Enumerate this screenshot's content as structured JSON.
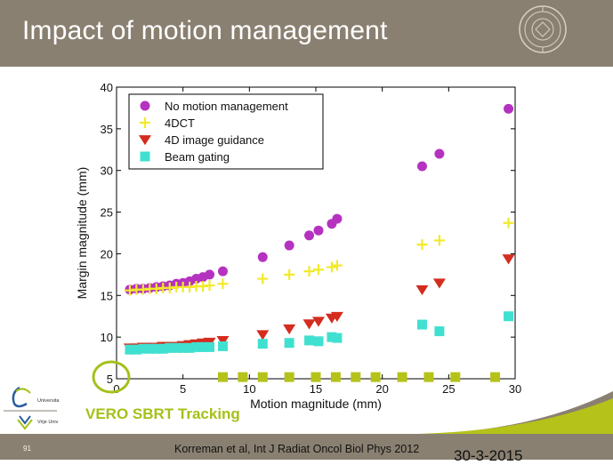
{
  "slide": {
    "title": "Impact of motion management",
    "highlight_label": "VERO SBRT Tracking",
    "page_number": "91",
    "citation": "Korreman et al, Int J Radiat Oncol Biol Phys 2012",
    "date": "30-3-2015",
    "logo_text_1": "Universita",
    "logo_text_2": "Vrije Univ",
    "colors": {
      "header": "#8a8071",
      "accent_green": "#a6c019",
      "callout_green": "#b5c21a"
    }
  },
  "chart_data": {
    "type": "scatter",
    "xlabel": "Motion magnitude (mm)",
    "ylabel": "Margin magnitude (mm)",
    "xlim": [
      0,
      30
    ],
    "ylim": [
      5,
      40
    ],
    "xticks": [
      "0",
      "5",
      "10",
      "15",
      "20",
      "25",
      "30"
    ],
    "yticks": [
      "5",
      "10",
      "15",
      "20",
      "25",
      "30",
      "35",
      "40"
    ],
    "legend_position": "top-left",
    "grid": false,
    "series": [
      {
        "name": "No motion management",
        "marker": "circle",
        "color": "#b532c0",
        "points": [
          [
            1.0,
            15.7
          ],
          [
            1.5,
            15.8
          ],
          [
            2.0,
            15.8
          ],
          [
            2.5,
            15.9
          ],
          [
            3.0,
            16.0
          ],
          [
            3.5,
            16.1
          ],
          [
            4.0,
            16.2
          ],
          [
            4.5,
            16.4
          ],
          [
            5.0,
            16.5
          ],
          [
            5.5,
            16.7
          ],
          [
            6.0,
            17.0
          ],
          [
            6.5,
            17.2
          ],
          [
            7.0,
            17.5
          ],
          [
            8.0,
            17.9
          ],
          [
            11.0,
            19.6
          ],
          [
            13.0,
            21.0
          ],
          [
            14.5,
            22.2
          ],
          [
            15.2,
            22.8
          ],
          [
            16.2,
            23.6
          ],
          [
            16.6,
            24.2
          ],
          [
            23.0,
            30.5
          ],
          [
            24.3,
            32.0
          ],
          [
            29.5,
            37.4
          ]
        ]
      },
      {
        "name": "4DCT",
        "marker": "plus",
        "color": "#f2ea2a",
        "points": [
          [
            1.0,
            15.6
          ],
          [
            1.5,
            15.7
          ],
          [
            2.0,
            15.7
          ],
          [
            2.5,
            15.8
          ],
          [
            3.0,
            15.8
          ],
          [
            3.5,
            15.9
          ],
          [
            4.0,
            15.9
          ],
          [
            4.5,
            16.0
          ],
          [
            5.0,
            16.0
          ],
          [
            5.5,
            16.0
          ],
          [
            6.0,
            16.1
          ],
          [
            6.5,
            16.1
          ],
          [
            7.0,
            16.2
          ],
          [
            8.0,
            16.4
          ],
          [
            11.0,
            17.0
          ],
          [
            13.0,
            17.5
          ],
          [
            14.5,
            17.9
          ],
          [
            15.2,
            18.1
          ],
          [
            16.2,
            18.4
          ],
          [
            16.6,
            18.6
          ],
          [
            23.0,
            21.1
          ],
          [
            24.3,
            21.6
          ],
          [
            29.5,
            23.7
          ]
        ]
      },
      {
        "name": "4D image guidance",
        "marker": "triangle-down",
        "color": "#d42c1e",
        "points": [
          [
            1.0,
            8.7
          ],
          [
            1.5,
            8.7
          ],
          [
            2.0,
            8.8
          ],
          [
            2.5,
            8.8
          ],
          [
            3.0,
            8.8
          ],
          [
            3.5,
            8.9
          ],
          [
            4.0,
            8.9
          ],
          [
            4.5,
            8.9
          ],
          [
            5.0,
            9.0
          ],
          [
            5.5,
            9.1
          ],
          [
            6.0,
            9.2
          ],
          [
            6.5,
            9.3
          ],
          [
            7.0,
            9.4
          ],
          [
            8.0,
            9.6
          ],
          [
            11.0,
            10.3
          ],
          [
            13.0,
            11.0
          ],
          [
            14.5,
            11.6
          ],
          [
            15.2,
            11.9
          ],
          [
            16.2,
            12.3
          ],
          [
            16.6,
            12.5
          ],
          [
            23.0,
            15.7
          ],
          [
            24.3,
            16.5
          ],
          [
            29.5,
            19.4
          ]
        ]
      },
      {
        "name": "Beam gating",
        "marker": "square",
        "color": "#40e0d0",
        "points": [
          [
            1.0,
            8.5
          ],
          [
            1.5,
            8.5
          ],
          [
            2.0,
            8.6
          ],
          [
            2.5,
            8.6
          ],
          [
            3.0,
            8.6
          ],
          [
            3.5,
            8.6
          ],
          [
            4.0,
            8.7
          ],
          [
            4.5,
            8.7
          ],
          [
            5.0,
            8.7
          ],
          [
            5.5,
            8.7
          ],
          [
            6.0,
            8.8
          ],
          [
            6.5,
            8.8
          ],
          [
            7.0,
            8.8
          ],
          [
            8.0,
            8.9
          ],
          [
            11.0,
            9.2
          ],
          [
            13.0,
            9.3
          ],
          [
            14.5,
            9.6
          ],
          [
            15.2,
            9.5
          ],
          [
            16.2,
            10.0
          ],
          [
            16.6,
            9.9
          ],
          [
            23.0,
            11.5
          ],
          [
            24.3,
            10.7
          ],
          [
            29.5,
            12.5
          ]
        ]
      },
      {
        "marker": "square",
        "color": "#b5c21a",
        "points": [
          [
            8.0,
            5.2
          ],
          [
            9.5,
            5.2
          ],
          [
            11.0,
            5.2
          ],
          [
            13.0,
            5.2
          ],
          [
            15.0,
            5.2
          ],
          [
            16.5,
            5.2
          ],
          [
            18.0,
            5.2
          ],
          [
            19.5,
            5.2
          ],
          [
            21.5,
            5.2
          ],
          [
            23.5,
            5.2
          ],
          [
            25.5,
            5.2
          ],
          [
            28.5,
            5.2
          ]
        ]
      }
    ],
    "annotations": [
      {
        "type": "circle",
        "target_y": 5,
        "color": "#a6c019"
      }
    ]
  }
}
